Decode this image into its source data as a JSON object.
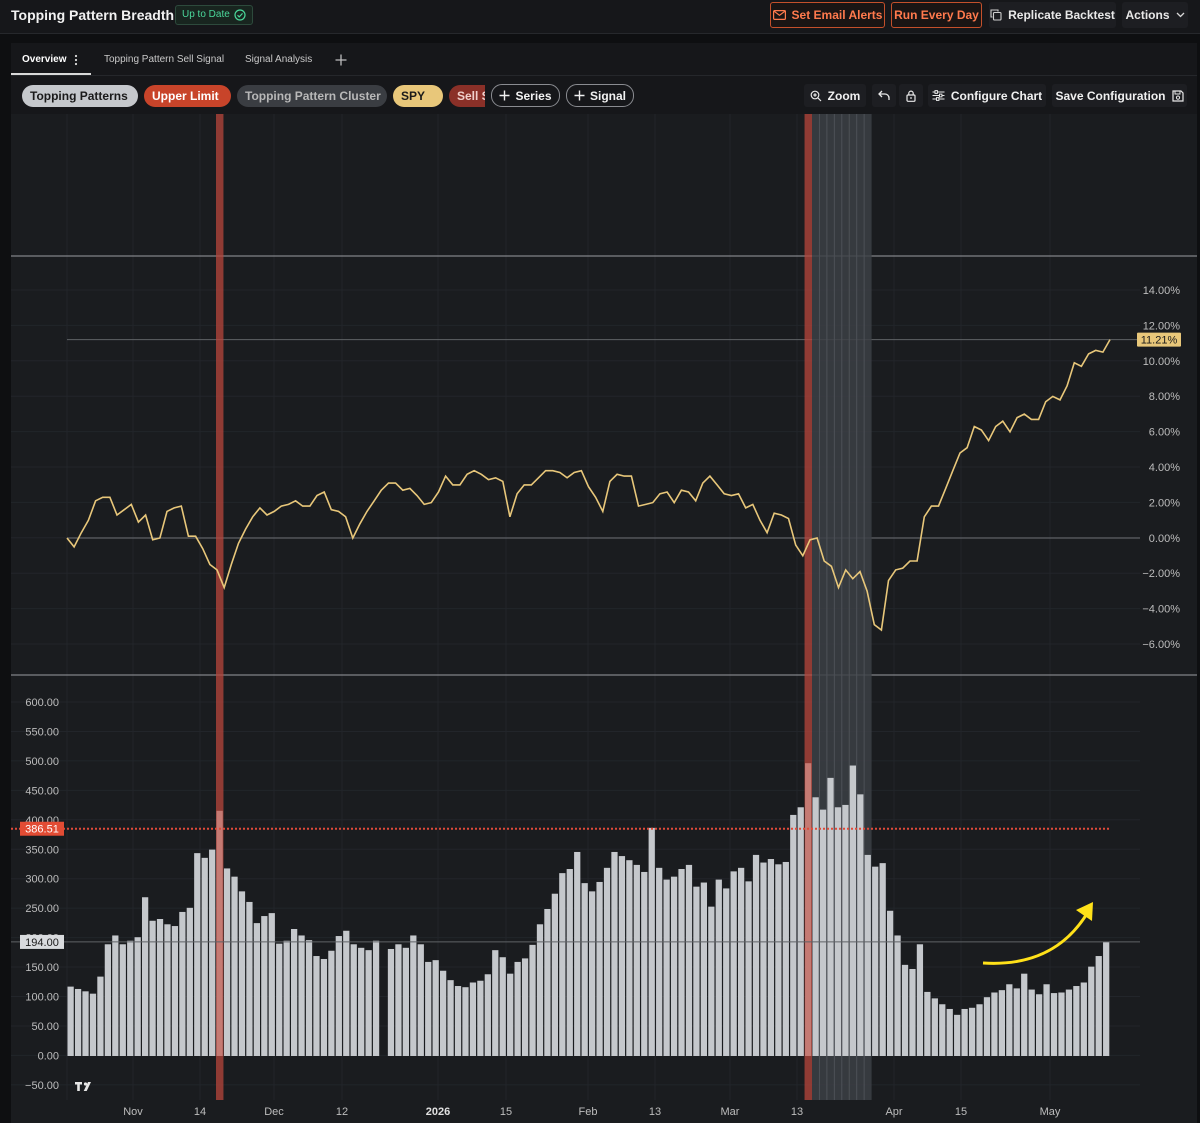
{
  "header": {
    "title": "Topping Pattern Breadth",
    "status": "Up to Date",
    "buttons": {
      "email": "Set Email Alerts",
      "run": "Run Every Day",
      "replicate": "Replicate Backtest",
      "actions": "Actions"
    }
  },
  "tabs": [
    "Overview",
    "Topping Pattern Sell Signal",
    "Signal Analysis"
  ],
  "legend": {
    "pills": [
      {
        "label": "Topping Patterns",
        "bg": "#c5c8cc",
        "fg": "#1a1a1a"
      },
      {
        "label": "Upper Limit",
        "bg": "#c8442a",
        "fg": "#ffffff"
      },
      {
        "label": "Topping Pattern Cluster",
        "bg": "#3a3d42",
        "fg": "#b8b8b8"
      },
      {
        "label": "SPY",
        "bg": "#e8c77a",
        "fg": "#1a1a1a"
      },
      {
        "label": "Sell S",
        "bg": "#8a3028",
        "fg": "#f0d0cc"
      }
    ],
    "add_series": "Series",
    "add_signal": "Signal"
  },
  "chart_toolbar": {
    "zoom": "Zoom",
    "configure": "Configure Chart",
    "save": "Save Configuration"
  },
  "chart_data": [
    {
      "type": "line",
      "series": [
        {
          "name": "SPY",
          "color": "#e8c77a",
          "values": [
            0.0,
            -0.5,
            0.3,
            1.0,
            2.1,
            2.3,
            2.3,
            1.3,
            1.6,
            1.9,
            0.9,
            1.3,
            -0.1,
            0.0,
            1.5,
            1.7,
            1.8,
            0.1,
            0.1,
            -0.6,
            -1.5,
            -1.8,
            -2.8,
            -1.5,
            -0.3,
            0.5,
            1.2,
            1.7,
            1.3,
            1.5,
            1.8,
            1.9,
            2.1,
            1.8,
            1.8,
            2.4,
            2.6,
            1.6,
            1.5,
            1.2,
            0.0,
            0.8,
            1.5,
            2.1,
            2.7,
            3.1,
            3.1,
            2.7,
            2.8,
            2.4,
            1.9,
            2.0,
            2.6,
            3.5,
            3.0,
            3.0,
            3.6,
            3.8,
            3.6,
            3.3,
            3.4,
            3.2,
            1.2,
            2.5,
            3.0,
            3.0,
            3.4,
            3.8,
            3.8,
            3.7,
            3.4,
            3.7,
            3.8,
            2.9,
            2.3,
            1.5,
            3.2,
            3.6,
            3.5,
            3.5,
            1.8,
            1.9,
            2.0,
            2.5,
            2.6,
            2.0,
            2.7,
            2.6,
            2.1,
            3.1,
            3.5,
            3.0,
            2.5,
            2.4,
            2.5,
            1.7,
            1.9,
            1.0,
            0.3,
            1.4,
            1.3,
            1.1,
            -0.4,
            -1.0,
            -0.1,
            0.0,
            -1.3,
            -1.6,
            -2.8,
            -1.8,
            -2.3,
            -1.9,
            -3.0,
            -4.9,
            -5.2,
            -2.4,
            -1.8,
            -1.7,
            -1.3,
            -1.3,
            1.2,
            1.8,
            1.8,
            2.8,
            3.8,
            4.8,
            5.1,
            6.3,
            6.1,
            5.5,
            6.3,
            6.6,
            6.0,
            6.8,
            7.0,
            6.7,
            6.7,
            7.7,
            8.0,
            7.8,
            8.6,
            9.9,
            9.7,
            10.4,
            10.6,
            10.5,
            11.21
          ]
        }
      ],
      "last_value_label": "11.21%",
      "yticks": [
        "14.00%",
        "12.00%",
        "10.00%",
        "8.00%",
        "6.00%",
        "4.00%",
        "2.00%",
        "0.00%",
        "−2.00%",
        "−4.00%",
        "−6.00%"
      ],
      "ylim": [
        -8,
        16
      ]
    },
    {
      "type": "bar",
      "series": [
        {
          "name": "Topping Patterns",
          "color": "#c5c8cc",
          "values": [
            118,
            114,
            110,
            106,
            135,
            190,
            205,
            190,
            196,
            202,
            270,
            230,
            233,
            224,
            221,
            245,
            252,
            345,
            337,
            351,
            417,
            319,
            305,
            280,
            262,
            226,
            238,
            243,
            191,
            196,
            216,
            205,
            197,
            170,
            165,
            179,
            204,
            213,
            190,
            184,
            180,
            196,
            0,
            182,
            190,
            184,
            205,
            190,
            160,
            163,
            145,
            129,
            119,
            117,
            125,
            128,
            139,
            180,
            168,
            140,
            160,
            166,
            189,
            224,
            250,
            276,
            311,
            318,
            347,
            294,
            280,
            296,
            320,
            347,
            340,
            333,
            325,
            313,
            388,
            320,
            300,
            305,
            318,
            325,
            288,
            295,
            254,
            300,
            285,
            314,
            320,
            297,
            342,
            329,
            335,
            326,
            330,
            410,
            423,
            498,
            440,
            419,
            473,
            423,
            427,
            494,
            445,
            342,
            322,
            328,
            247,
            205,
            155,
            148,
            190,
            109,
            98,
            88,
            80,
            70,
            80,
            82,
            88,
            100,
            108,
            112,
            122,
            115,
            140,
            113,
            105,
            122,
            107,
            108,
            113,
            119,
            125,
            152,
            170,
            194
          ]
        }
      ],
      "upper_limit": 386.51,
      "upper_limit_label": "386.51",
      "last_value_label": "194.00",
      "yticks": [
        "600.00",
        "550.00",
        "500.00",
        "450.00",
        "400.00",
        "350.00",
        "300.00",
        "250.00",
        "200.00",
        "150.00",
        "100.00",
        "50.00",
        "0.00",
        "−50.00"
      ],
      "ylim": [
        -60,
        630
      ]
    }
  ],
  "x_axis_labels": [
    "Nov",
    "14",
    "Dec",
    "12",
    "2026",
    "15",
    "Feb",
    "13",
    "Mar",
    "13",
    "Apr",
    "15",
    "May"
  ],
  "annotation": "yellow-arrow-up"
}
